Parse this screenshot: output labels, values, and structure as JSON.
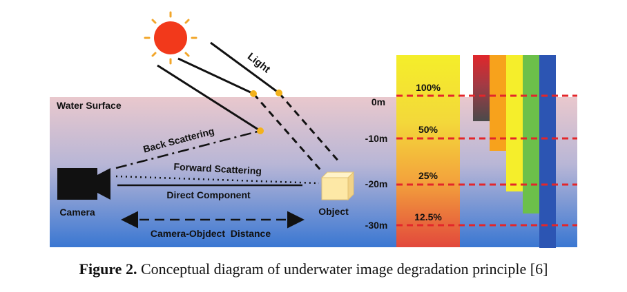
{
  "labels": {
    "light": "Light",
    "water_surface": "Water Surface",
    "back_scattering": "Back Scattering",
    "forward_scattering": "Forward Scattering",
    "direct_component": "Direct Component",
    "camera": "Camera",
    "object": "Object",
    "distance": "Camera-Objdect  Distance"
  },
  "depths": [
    "0m",
    "-10m",
    "-20m",
    "-30m"
  ],
  "intensities": [
    "100%",
    "50%",
    "25%",
    "12.5%"
  ],
  "caption": {
    "prefix": "Figure 2.",
    "text": " Conceptual diagram of underwater image degradation principle [6]"
  },
  "colors": {
    "water_top": "#e8c6cc",
    "water_bottom": "#3f79d1",
    "sun": "#f2391b",
    "sun_rays": "#f2a62a",
    "depth_line": "#e3262a",
    "scatter_dot": "#f3b21c",
    "object_face": "#fde8a6",
    "bars": [
      "#e0272b",
      "#f7a21c",
      "#f5ee2b",
      "#6cc04a",
      "#2c55b3"
    ]
  },
  "color_bars": [
    {
      "name": "red",
      "depth_reach_m": -5
    },
    {
      "name": "orange",
      "depth_reach_m": -13
    },
    {
      "name": "yellow",
      "depth_reach_m": -23
    },
    {
      "name": "green",
      "depth_reach_m": -29
    },
    {
      "name": "blue",
      "depth_reach_m": -35
    }
  ]
}
